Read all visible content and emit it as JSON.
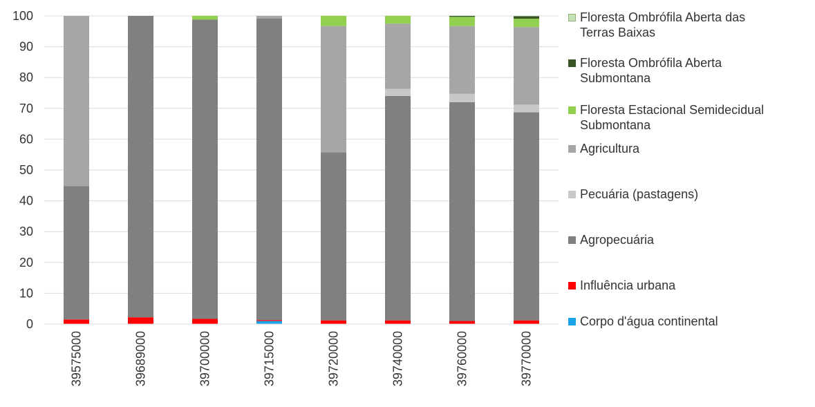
{
  "chart_data": {
    "type": "bar",
    "stacked": true,
    "categories": [
      "39575000",
      "39689000",
      "39700000",
      "39715000",
      "39720000",
      "39740000",
      "39760000",
      "39770000"
    ],
    "ylim": [
      0,
      100
    ],
    "yticks": [
      0,
      10,
      20,
      30,
      40,
      50,
      60,
      70,
      80,
      90,
      100
    ],
    "grid": true,
    "legend_position": "right",
    "series": [
      {
        "name": "Corpo d'água continental",
        "color": "#1aa3e8",
        "values": [
          0,
          0,
          0,
          1.0,
          0,
          0,
          0,
          0
        ]
      },
      {
        "name": "Influência urbana",
        "color": "#ff0000",
        "values": [
          1.5,
          2.2,
          1.7,
          0.3,
          1.2,
          1.2,
          1.0,
          1.2
        ]
      },
      {
        "name": "Agropecuária",
        "color": "#808080",
        "values": [
          43.3,
          97.8,
          97.1,
          97.8,
          54.5,
          72.8,
          71.0,
          67.5
        ]
      },
      {
        "name": "Pecuária (pastagens)",
        "color": "#c8c8c8",
        "values": [
          0,
          0,
          0,
          0,
          0,
          2.3,
          2.7,
          2.5
        ]
      },
      {
        "name": "Agricultura",
        "color": "#a6a6a6",
        "values": [
          55.2,
          0,
          0,
          0.9,
          41.0,
          21.2,
          22.0,
          25.2
        ]
      },
      {
        "name": "Floresta Estacional Semidecidual Submontana",
        "color": "#92d050",
        "values": [
          0,
          0,
          1.2,
          0,
          3.3,
          2.5,
          3.0,
          2.7
        ]
      },
      {
        "name": "Floresta Ombrófila Aberta Submontana",
        "color": "#375623",
        "values": [
          0,
          0,
          0,
          0,
          0,
          0,
          0.3,
          0.8
        ]
      },
      {
        "name": "Floresta Ombrófila Aberta das Terras Baixas",
        "color": "#c5e0b4",
        "values": [
          0,
          0,
          0,
          0,
          0,
          0,
          0,
          0.1
        ]
      }
    ]
  },
  "legend": {
    "items": [
      {
        "label": "Floresta Ombrófila Aberta das\nTerras Baixas",
        "color": "#c5e0b4",
        "border": "#8fb072"
      },
      {
        "label": "Floresta Ombrófila Aberta\nSubmontana",
        "color": "#375623",
        "border": "#375623"
      },
      {
        "label": "Floresta Estacional Semidecidual\nSubmontana",
        "color": "#92d050",
        "border": "#92d050"
      },
      {
        "label": "Agricultura",
        "color": "#a6a6a6",
        "border": "#a6a6a6"
      },
      {
        "label": "Pecuária (pastagens)",
        "color": "#c8c8c8",
        "border": "#c8c8c8"
      },
      {
        "label": "Agropecuária",
        "color": "#808080",
        "border": "#808080"
      },
      {
        "label": "Influência urbana",
        "color": "#ff0000",
        "border": "#ff0000"
      },
      {
        "label": "Corpo d'água continental",
        "color": "#1aa3e8",
        "border": "#1aa3e8"
      }
    ]
  }
}
